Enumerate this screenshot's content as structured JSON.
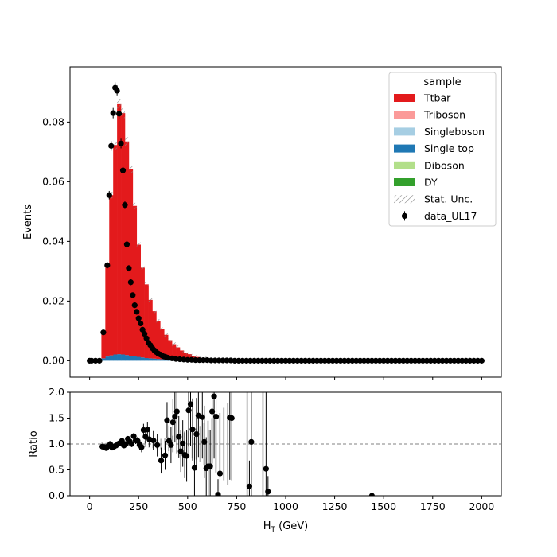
{
  "chart_data": [
    {
      "type": "bar",
      "stacked": true,
      "panel": "main",
      "xlabel": "",
      "ylabel": "Events",
      "xlim": [
        -100,
        2100
      ],
      "ylim": [
        -0.0055,
        0.0985
      ],
      "xticks": [
        0,
        250,
        500,
        750,
        1000,
        1250,
        1500,
        1750,
        2000
      ],
      "yticks": [
        0.0,
        0.02,
        0.04,
        0.06,
        0.08
      ],
      "ytick_labels": [
        "0.00",
        "0.02",
        "0.04",
        "0.06",
        "0.08"
      ],
      "tick_labels_shown": false,
      "legend": {
        "position": "top-right",
        "title": "sample",
        "entries": [
          {
            "label": "Ttbar",
            "color": "#e31a1c",
            "kind": "patch"
          },
          {
            "label": "Triboson",
            "color": "#fb9a99",
            "kind": "patch"
          },
          {
            "label": "Singleboson",
            "color": "#a6cee3",
            "kind": "patch"
          },
          {
            "label": "Single top",
            "color": "#1f78b4",
            "kind": "patch"
          },
          {
            "label": "Diboson",
            "color": "#b2df8a",
            "kind": "patch"
          },
          {
            "label": "DY",
            "color": "#33a02c",
            "kind": "patch"
          },
          {
            "label": "Stat. Unc.",
            "color": "#888888",
            "kind": "hatch"
          },
          {
            "label": "data_UL17",
            "color": "#000000",
            "kind": "errorbar"
          }
        ]
      },
      "bin_width": 20,
      "bin_edges_start": 60,
      "series": [
        {
          "name": "Single top",
          "color": "#1f78b4",
          "values": [
            0.0008,
            0.0014,
            0.0018,
            0.0021,
            0.0022,
            0.0021,
            0.0019,
            0.0017,
            0.0015,
            0.0013,
            0.0011,
            0.0009,
            0.0008,
            0.0007,
            0.0006,
            0.0005,
            0.0004,
            0.0003,
            0.00025,
            0.0002,
            0.00015,
            0.00012,
            0.0001,
            8e-05,
            6e-05,
            5e-05,
            4e-05,
            3e-05,
            2e-05,
            1e-05
          ]
        },
        {
          "name": "Ttbar",
          "color": "#e31a1c",
          "values": [
            0.0087,
            0.0306,
            0.0537,
            0.0702,
            0.0838,
            0.0809,
            0.0716,
            0.0624,
            0.0504,
            0.0376,
            0.0301,
            0.0247,
            0.0196,
            0.0159,
            0.0127,
            0.0101,
            0.0083,
            0.0066,
            0.0053,
            0.0043,
            0.0033,
            0.0026,
            0.0021,
            0.0016,
            0.0012,
            0.0009,
            0.0007,
            0.0005,
            0.0004,
            0.0003
          ]
        }
      ],
      "data_points": {
        "name": "data_UL17",
        "x": [
          0,
          10,
          30,
          50,
          70,
          90,
          100,
          110,
          120,
          130,
          140,
          150,
          160,
          170,
          180,
          190,
          200,
          210,
          220,
          230,
          240,
          250,
          260,
          270,
          280,
          290,
          300,
          310,
          320,
          330,
          340,
          350,
          360,
          370,
          380,
          390,
          400,
          420,
          440,
          460,
          480,
          500,
          520,
          540,
          560,
          580,
          600,
          620,
          640,
          660,
          680,
          700,
          720,
          740,
          760,
          780,
          800,
          820,
          840,
          860,
          880,
          900,
          920,
          940,
          960,
          980,
          1000,
          1020,
          1040,
          1060,
          1080,
          1100,
          1120,
          1140,
          1160,
          1180,
          1200,
          1220,
          1240,
          1260,
          1280,
          1300,
          1320,
          1340,
          1360,
          1380,
          1400,
          1420,
          1440,
          1460,
          1480,
          1500,
          1520,
          1540,
          1560,
          1580,
          1600,
          1620,
          1640,
          1660,
          1680,
          1700,
          1720,
          1740,
          1760,
          1780,
          1800,
          1820,
          1840,
          1860,
          1880,
          1900,
          1920,
          1940,
          1960,
          1980,
          2000
        ],
        "y": [
          0.0,
          0.0,
          0.0,
          0.0,
          0.0095,
          0.032,
          0.0555,
          0.072,
          0.083,
          0.0915,
          0.0905,
          0.0828,
          0.0728,
          0.0638,
          0.0522,
          0.039,
          0.031,
          0.0263,
          0.022,
          0.0186,
          0.0164,
          0.0142,
          0.0125,
          0.0104,
          0.009,
          0.0075,
          0.006,
          0.0052,
          0.0042,
          0.0035,
          0.0029,
          0.0024,
          0.0021,
          0.0017,
          0.0014,
          0.0012,
          0.001,
          0.0008,
          0.0006,
          0.0005,
          0.0004,
          0.0003,
          0.0003,
          0.0002,
          0.0002,
          0.0002,
          0.0002,
          0.0001,
          0.0001,
          0.0001,
          0.0001,
          0.0001,
          0.0001,
          0.0,
          0.0,
          0.0,
          0.0,
          0.0,
          0.0,
          0.0,
          0.0,
          0.0,
          0.0,
          0.0,
          0.0,
          0.0,
          0.0,
          0.0,
          0.0,
          0.0,
          0.0,
          0.0,
          0.0,
          0.0,
          0.0,
          0.0,
          0.0,
          0.0,
          0.0,
          0.0,
          0.0,
          0.0,
          0.0,
          0.0,
          0.0,
          0.0,
          0.0,
          0.0,
          0.0,
          0.0,
          0.0,
          0.0,
          0.0,
          0.0,
          0.0,
          0.0,
          0.0,
          0.0,
          0.0,
          0.0,
          0.0,
          0.0,
          0.0,
          0.0,
          0.0,
          0.0,
          0.0,
          0.0,
          0.0,
          0.0,
          0.0,
          0.0,
          0.0,
          0.0,
          0.0,
          0.0,
          0.0
        ]
      }
    },
    {
      "type": "scatter",
      "panel": "ratio",
      "xlabel": "H$_T$ (GeV)",
      "xlabel_parts": {
        "main": "H",
        "sub": "T",
        "rest": " (GeV)"
      },
      "ylabel": "Ratio",
      "xlim": [
        -100,
        2100
      ],
      "ylim": [
        0.0,
        2.0
      ],
      "xticks": [
        0,
        250,
        500,
        750,
        1000,
        1250,
        1500,
        1750,
        2000
      ],
      "xtick_labels": [
        "0",
        "250",
        "500",
        "750",
        "1000",
        "1250",
        "1500",
        "1750",
        "2000"
      ],
      "yticks": [
        0.0,
        0.5,
        1.0,
        1.5,
        2.0
      ],
      "ytick_labels": [
        "0.0",
        "0.5",
        "1.0",
        "1.5",
        "2.0"
      ],
      "reference_line": {
        "y": 1.0,
        "style": "dashed",
        "color": "#808080"
      },
      "uncertainty_band": {
        "color": "#a9a9a9",
        "x": [
          60,
          80,
          100,
          120,
          140,
          160,
          180,
          200,
          220,
          240,
          260,
          280,
          300,
          320,
          340,
          360,
          380,
          400,
          420,
          440,
          460,
          480,
          500,
          520,
          540,
          560,
          580,
          600,
          620,
          640,
          660,
          680,
          700,
          800,
          880
        ],
        "half_width": [
          0.03,
          0.02,
          0.02,
          0.015,
          0.015,
          0.02,
          0.02,
          0.03,
          0.03,
          0.04,
          0.05,
          0.06,
          0.07,
          0.08,
          0.09,
          0.1,
          0.12,
          0.14,
          0.16,
          0.18,
          0.2,
          0.22,
          0.25,
          0.28,
          0.3,
          0.35,
          0.4,
          0.45,
          0.5,
          0.55,
          0.6,
          0.7,
          0.8,
          1.0,
          1.2
        ]
      },
      "points": {
        "x": [
          65,
          75,
          85,
          95,
          105,
          115,
          125,
          135,
          145,
          155,
          165,
          175,
          185,
          195,
          205,
          215,
          225,
          235,
          245,
          255,
          265,
          275,
          285,
          295,
          305,
          325,
          345,
          365,
          385,
          395,
          405,
          415,
          425,
          435,
          445,
          455,
          465,
          475,
          485,
          495,
          505,
          515,
          525,
          535,
          545,
          555,
          575,
          585,
          595,
          605,
          615,
          625,
          635,
          645,
          655,
          665,
          715,
          725,
          815,
          825,
          900,
          910,
          1440
        ],
        "y": [
          0.95,
          0.94,
          0.92,
          0.96,
          1.0,
          0.93,
          0.95,
          0.97,
          1.0,
          1.02,
          1.06,
          0.97,
          1.0,
          1.1,
          1.05,
          1.0,
          1.15,
          1.07,
          1.06,
          0.98,
          0.94,
          1.27,
          1.14,
          1.28,
          1.09,
          1.07,
          0.98,
          0.68,
          0.78,
          1.46,
          1.06,
          0.98,
          1.42,
          1.53,
          1.63,
          1.14,
          0.86,
          1.01,
          0.79,
          0.77,
          1.65,
          1.77,
          1.28,
          0.54,
          1.19,
          1.55,
          1.52,
          1.04,
          0.53,
          0.57,
          0.57,
          1.63,
          1.92,
          1.53,
          0.02,
          0.43,
          1.51,
          1.5,
          0.18,
          1.04,
          0.52,
          0.08,
          0.0
        ],
        "err": [
          0.03,
          0.02,
          0.02,
          0.02,
          0.02,
          0.02,
          0.02,
          0.02,
          0.02,
          0.03,
          0.03,
          0.04,
          0.04,
          0.05,
          0.05,
          0.06,
          0.06,
          0.07,
          0.08,
          0.09,
          0.1,
          0.12,
          0.13,
          0.15,
          0.15,
          0.18,
          0.22,
          0.25,
          0.28,
          0.35,
          0.3,
          0.35,
          0.45,
          0.5,
          0.55,
          0.4,
          0.4,
          0.45,
          0.45,
          0.5,
          0.7,
          0.8,
          0.6,
          0.6,
          0.7,
          0.8,
          0.8,
          0.7,
          0.6,
          0.7,
          0.7,
          1.0,
          1.2,
          1.0,
          0.3,
          0.6,
          1.2,
          1.2,
          0.5,
          1.5,
          1.5,
          0.3,
          0.0
        ]
      }
    }
  ]
}
